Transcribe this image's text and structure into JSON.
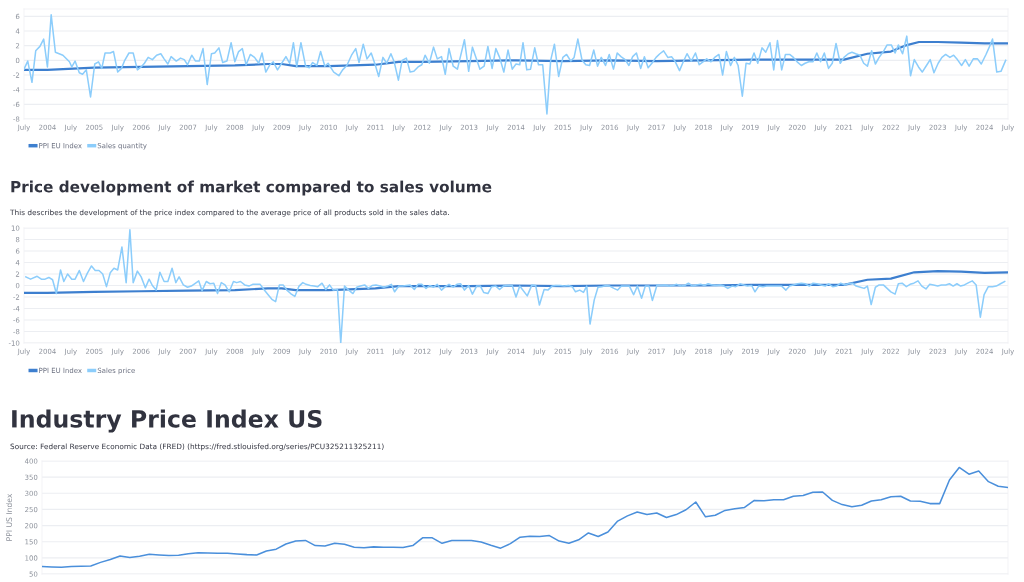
{
  "chart_data": [
    {
      "type": "line",
      "xlim": [
        2003.5,
        2024.5
      ],
      "ylim": [
        -8,
        7
      ],
      "yticks": [
        -8,
        -6,
        -4,
        -2,
        0,
        2,
        4,
        6
      ],
      "grid": "y",
      "legend": "bottom",
      "xticks": [
        {
          "value": 2003.5,
          "label": "July"
        },
        2004,
        {
          "value": 2004.5,
          "label": "July"
        },
        2005,
        {
          "value": 2005.5,
          "label": "July"
        },
        2006,
        {
          "value": 2006.5,
          "label": "July"
        },
        2007,
        {
          "value": 2007.5,
          "label": "July"
        },
        2008,
        {
          "value": 2008.5,
          "label": "July"
        },
        2009,
        {
          "value": 2009.5,
          "label": "July"
        },
        2010,
        {
          "value": 2010.5,
          "label": "July"
        },
        2011,
        {
          "value": 2011.5,
          "label": "July"
        },
        2012,
        {
          "value": 2012.5,
          "label": "July"
        },
        2013,
        {
          "value": 2013.5,
          "label": "July"
        },
        2014,
        {
          "value": 2014.5,
          "label": "July"
        },
        2015,
        {
          "value": 2015.5,
          "label": "July"
        },
        2016,
        {
          "value": 2016.5,
          "label": "July"
        },
        2017,
        {
          "value": 2017.5,
          "label": "July"
        },
        2018,
        {
          "value": 2018.5,
          "label": "July"
        },
        2019,
        {
          "value": 2019.5,
          "label": "July"
        },
        2020,
        {
          "value": 2020.5,
          "label": "July"
        },
        2021,
        {
          "value": 2021.5,
          "label": "July"
        },
        2022,
        {
          "value": 2022.5,
          "label": "July"
        },
        2023,
        {
          "value": 2023.5,
          "label": "July"
        },
        2024,
        {
          "value": 2024.5,
          "label": "July"
        }
      ],
      "series": [
        {
          "name": "PPI EU Index",
          "color": "#3d7fcf",
          "x": [
            2003.5,
            2004,
            2005,
            2006,
            2007,
            2008,
            2008.7,
            2009,
            2009.3,
            2010,
            2011,
            2011.5,
            2012,
            2013,
            2014,
            2015,
            2016,
            2017,
            2018,
            2019,
            2020,
            2021,
            2021.5,
            2022,
            2022.3,
            2022.6,
            2023,
            2023.5,
            2024,
            2024.5
          ],
          "values": [
            -1.3,
            -1.3,
            -1.0,
            -0.9,
            -0.8,
            -0.7,
            -0.5,
            -0.5,
            -0.8,
            -0.8,
            -0.6,
            -0.2,
            -0.2,
            -0.1,
            0.0,
            -0.1,
            0.0,
            -0.1,
            0.0,
            0.1,
            0.1,
            0.1,
            0.9,
            1.2,
            2.0,
            2.5,
            2.5,
            2.4,
            2.3,
            2.3
          ]
        },
        {
          "name": "Sales quantity",
          "color": "#8ccdfb",
          "x": [
            2003.5,
            2003.58,
            2003.67,
            2003.75,
            2003.84,
            2003.92,
            2004.0,
            2004.08,
            2004.17,
            2004.33,
            2004.47,
            2004.52,
            2004.59,
            2004.68,
            2004.75,
            2004.83,
            2004.92,
            2005.01,
            2005.09,
            2005.16,
            2005.23,
            2005.34,
            2005.41,
            2005.5,
            2005.58,
            2005.65,
            2005.74,
            2005.83,
            2005.92,
            2006.0,
            2006.07,
            2006.15,
            2006.24,
            2006.33,
            2006.42,
            2006.49,
            2006.57,
            2006.64,
            2006.75,
            2006.84,
            2006.92,
            2006.99,
            2007.08,
            2007.16,
            2007.24,
            2007.32,
            2007.41,
            2007.5,
            2007.57,
            2007.66,
            2007.74,
            2007.83,
            2007.92,
            2008.0,
            2008.08,
            2008.16,
            2008.24,
            2008.33,
            2008.42,
            2008.51,
            2008.58,
            2008.66,
            2008.75,
            2008.82,
            2008.91,
            2009.0,
            2009.09,
            2009.17,
            2009.25,
            2009.32,
            2009.41,
            2009.51,
            2009.59,
            2009.66,
            2009.75,
            2009.83,
            2009.92,
            2009.99,
            2010.11,
            2010.22,
            2010.3,
            2010.39,
            2010.49,
            2010.58,
            2010.65,
            2010.74,
            2010.82,
            2010.91,
            2011.0,
            2011.07,
            2011.16,
            2011.24,
            2011.33,
            2011.4,
            2011.49,
            2011.57,
            2011.66,
            2011.74,
            2011.82,
            2011.91,
            2011.99,
            2012.06,
            2012.15,
            2012.24,
            2012.32,
            2012.41,
            2012.49,
            2012.57,
            2012.66,
            2012.75,
            2012.9,
            2012.99,
            2013.07,
            2013.16,
            2013.23,
            2013.32,
            2013.4,
            2013.49,
            2013.57,
            2013.65,
            2013.74,
            2013.83,
            2013.92,
            2014.0,
            2014.08,
            2014.15,
            2014.23,
            2014.31,
            2014.4,
            2014.48,
            2014.57,
            2014.66,
            2014.74,
            2014.82,
            2014.91,
            2015.0,
            2015.08,
            2015.17,
            2015.24,
            2015.32,
            2015.41,
            2015.49,
            2015.57,
            2015.66,
            2015.74,
            2015.82,
            2015.91,
            2015.99,
            2016.08,
            2016.16,
            2016.24,
            2016.33,
            2016.41,
            2016.49,
            2016.57,
            2016.66,
            2016.74,
            2016.82,
            2016.9,
            2016.99,
            2017.07,
            2017.15,
            2017.24,
            2017.32,
            2017.4,
            2017.49,
            2017.57,
            2017.65,
            2017.74,
            2017.83,
            2017.91,
            2017.99,
            2018.07,
            2018.16,
            2018.24,
            2018.33,
            2018.41,
            2018.49,
            2018.58,
            2018.66,
            2018.74,
            2018.83,
            2018.91,
            2018.99,
            2019.08,
            2019.16,
            2019.25,
            2019.33,
            2019.42,
            2019.5,
            2019.58,
            2019.67,
            2019.75,
            2019.84,
            2019.92,
            2020.0,
            2020.09,
            2020.17,
            2020.25,
            2020.34,
            2020.42,
            2020.5,
            2020.58,
            2020.67,
            2020.75,
            2020.83,
            2020.92,
            2021.0,
            2021.09,
            2021.17,
            2021.25,
            2021.34,
            2021.42,
            2021.5,
            2021.59,
            2021.67,
            2021.75,
            2021.84,
            2021.92,
            2022.01,
            2022.09,
            2022.16,
            2022.25,
            2022.34,
            2022.42,
            2022.5,
            2022.59,
            2022.67,
            2022.76,
            2022.84,
            2022.92,
            2023.01,
            2023.09,
            2023.17,
            2023.26,
            2023.34,
            2023.42,
            2023.51,
            2023.59,
            2023.67,
            2023.76,
            2023.85,
            2023.93,
            2024.03,
            2024.1,
            2024.17,
            2024.26,
            2024.35,
            2024.45
          ],
          "values": [
            -1.2,
            -0.1,
            -3.0,
            1.3,
            1.9,
            2.9,
            -0.9,
            6.2,
            1.1,
            0.7,
            -0.2,
            -0.9,
            -0.1,
            -1.7,
            -1.9,
            -1.3,
            -5.0,
            -0.5,
            -0.2,
            -1.1,
            1.0,
            1.0,
            1.2,
            -1.6,
            -1.1,
            0.0,
            1.0,
            1.0,
            -1.3,
            -0.9,
            -0.4,
            0.4,
            0.1,
            0.7,
            0.9,
            0.2,
            -0.5,
            0.5,
            -0.1,
            0.3,
            0.1,
            -0.6,
            0.7,
            -0.1,
            -0.1,
            1.6,
            -3.3,
            0.9,
            1.0,
            1.7,
            -0.3,
            -0.1,
            2.4,
            -0.2,
            1.2,
            1.6,
            -0.6,
            0.8,
            0.4,
            -0.4,
            1.0,
            -1.6,
            -0.6,
            -0.2,
            -1.3,
            -0.4,
            0.5,
            -0.4,
            2.4,
            -0.9,
            2.4,
            -0.8,
            -1.0,
            -0.3,
            -0.7,
            1.2,
            -0.8,
            -0.4,
            -1.6,
            -2.1,
            -1.3,
            -0.7,
            0.7,
            1.6,
            -0.3,
            2.2,
            0.2,
            1.0,
            -0.7,
            -2.2,
            0.4,
            -0.4,
            0.9,
            -0.2,
            -2.7,
            0.0,
            0.3,
            -1.6,
            -1.5,
            -0.9,
            -0.6,
            0.7,
            -0.4,
            1.8,
            0.2,
            0.5,
            -1.9,
            1.6,
            -0.8,
            -1.2,
            2.8,
            -1.5,
            1.8,
            0.1,
            -1.2,
            -0.8,
            1.9,
            -1.1,
            1.6,
            0.4,
            -1.6,
            1.4,
            -1.2,
            -0.5,
            -0.6,
            2.4,
            -1.3,
            -1.2,
            1.7,
            -0.6,
            -0.6,
            -7.3,
            0.0,
            2.2,
            -2.2,
            0.4,
            0.8,
            -0.1,
            0.4,
            2.9,
            0.0,
            -0.6,
            -0.7,
            1.4,
            -0.8,
            0.4,
            -0.7,
            0.8,
            -1.2,
            1.0,
            0.5,
            0.1,
            -0.7,
            0.5,
            1.0,
            -1.1,
            0.5,
            -1.0,
            -0.4,
            0.4,
            0.9,
            1.3,
            0.4,
            0.5,
            -0.2,
            -1.4,
            -0.2,
            0.9,
            -0.1,
            1.0,
            -0.6,
            -0.2,
            0.2,
            -0.2,
            0.4,
            0.8,
            -2.0,
            1.2,
            -0.7,
            0.4,
            -0.7,
            -4.9,
            -0.4,
            -0.5,
            1.0,
            -0.4,
            1.7,
            1.1,
            2.4,
            -1.3,
            2.7,
            -1.3,
            0.8,
            0.8,
            0.4,
            -0.2,
            -0.7,
            -0.4,
            -0.2,
            -0.2,
            1.0,
            -0.2,
            1.0,
            -1.1,
            -0.4,
            2.3,
            -0.4,
            0.4,
            0.9,
            1.1,
            0.9,
            0.7,
            -0.4,
            -0.8,
            1.3,
            -0.5,
            0.4,
            1.2,
            2.1,
            2.1,
            1.0,
            2.1,
            0.9,
            3.3,
            -2.1,
            0.1,
            -0.9,
            -1.6,
            -0.7,
            0.1,
            -1.7,
            -0.4,
            0.4,
            0.8,
            0.4,
            0.7,
            0.1,
            -0.7,
            0.1,
            -0.8,
            0.2,
            0.2,
            -0.5,
            0.8,
            1.8,
            2.9,
            -1.6,
            -1.5,
            0.0
          ]
        }
      ]
    },
    {
      "type": "line",
      "title": "Price development of market compared to sales volume",
      "subtitle": "This describes the development of the price index compared to the average price of all products sold in the sales data.",
      "xlim": [
        2003.5,
        2024.5
      ],
      "ylim": [
        -10,
        10
      ],
      "yticks": [
        -10,
        -8,
        -6,
        -4,
        -2,
        0,
        2,
        4,
        6,
        8,
        10
      ],
      "grid": "y",
      "legend": "bottom",
      "xticks": [
        {
          "value": 2003.5,
          "label": "July"
        },
        2004,
        {
          "value": 2004.5,
          "label": "July"
        },
        2005,
        {
          "value": 2005.5,
          "label": "July"
        },
        2006,
        {
          "value": 2006.5,
          "label": "July"
        },
        2007,
        {
          "value": 2007.5,
          "label": "July"
        },
        2008,
        {
          "value": 2008.5,
          "label": "July"
        },
        2009,
        {
          "value": 2009.5,
          "label": "July"
        },
        2010,
        {
          "value": 2010.5,
          "label": "July"
        },
        2011,
        {
          "value": 2011.5,
          "label": "July"
        },
        2012,
        {
          "value": 2012.5,
          "label": "July"
        },
        2013,
        {
          "value": 2013.5,
          "label": "July"
        },
        2014,
        {
          "value": 2014.5,
          "label": "July"
        },
        2015,
        {
          "value": 2015.5,
          "label": "July"
        },
        2016,
        {
          "value": 2016.5,
          "label": "July"
        },
        2017,
        {
          "value": 2017.5,
          "label": "July"
        },
        2018,
        {
          "value": 2018.5,
          "label": "July"
        },
        2019,
        {
          "value": 2019.5,
          "label": "July"
        },
        2020,
        {
          "value": 2020.5,
          "label": "July"
        },
        2021,
        {
          "value": 2021.5,
          "label": "July"
        },
        2022,
        {
          "value": 2022.5,
          "label": "July"
        },
        2023,
        {
          "value": 2023.5,
          "label": "July"
        },
        2024,
        {
          "value": 2024.5,
          "label": "July"
        }
      ],
      "series": [
        {
          "name": "PPI EU Index",
          "color": "#3d7fcf",
          "x": [
            2003.5,
            2004,
            2005,
            2006,
            2007,
            2008,
            2008.7,
            2009,
            2009.3,
            2010,
            2010.3,
            2011,
            2011.5,
            2012,
            2013,
            2014,
            2015,
            2016,
            2017,
            2018,
            2019,
            2020,
            2021,
            2021.5,
            2022,
            2022.5,
            2023,
            2023.5,
            2024,
            2024.5
          ],
          "values": [
            -1.3,
            -1.3,
            -1.1,
            -1.0,
            -0.9,
            -0.8,
            -0.5,
            -0.5,
            -0.8,
            -0.8,
            -0.7,
            -0.5,
            -0.1,
            -0.1,
            -0.1,
            0.0,
            -0.1,
            0.0,
            0.0,
            0.0,
            0.1,
            0.1,
            0.1,
            1.0,
            1.2,
            2.3,
            2.5,
            2.4,
            2.2,
            2.3
          ]
        },
        {
          "name": "Sales price",
          "color": "#8ccdfb",
          "x": [
            2003.54,
            2003.64,
            2003.78,
            2003.87,
            2003.95,
            2004.03,
            2004.11,
            2004.19,
            2004.28,
            2004.35,
            2004.43,
            2004.52,
            2004.59,
            2004.68,
            2004.77,
            2004.85,
            2004.94,
            2005.02,
            2005.1,
            2005.18,
            2005.26,
            2005.34,
            2005.42,
            2005.5,
            2005.59,
            2005.68,
            2005.76,
            2005.83,
            2005.92,
            2006.0,
            2006.09,
            2006.17,
            2006.24,
            2006.32,
            2006.4,
            2006.49,
            2006.57,
            2006.66,
            2006.74,
            2006.81,
            2006.9,
            2006.99,
            2007.07,
            2007.14,
            2007.23,
            2007.3,
            2007.39,
            2007.47,
            2007.55,
            2007.63,
            2007.71,
            2007.79,
            2007.88,
            2007.97,
            2008.04,
            2008.12,
            2008.21,
            2008.3,
            2008.38,
            2008.46,
            2008.54,
            2008.62,
            2008.71,
            2008.79,
            2008.87,
            2008.95,
            2009.03,
            2009.11,
            2009.19,
            2009.28,
            2009.37,
            2009.45,
            2009.52,
            2009.61,
            2009.69,
            2009.77,
            2009.86,
            2009.94,
            2010.02,
            2010.1,
            2010.19,
            2010.26,
            2010.34,
            2010.43,
            2010.52,
            2010.6,
            2010.68,
            2010.77,
            2010.85,
            2010.93,
            2011.01,
            2011.1,
            2011.18,
            2011.26,
            2011.34,
            2011.41,
            2011.5,
            2011.58,
            2011.66,
            2011.74,
            2011.83,
            2011.91,
            2011.99,
            2012.08,
            2012.16,
            2012.24,
            2012.32,
            2012.41,
            2012.49,
            2012.57,
            2012.66,
            2012.74,
            2012.82,
            2012.9,
            2012.99,
            2013.07,
            2013.16,
            2013.24,
            2013.31,
            2013.4,
            2013.48,
            2013.57,
            2013.65,
            2013.73,
            2013.82,
            2013.92,
            2014.0,
            2014.08,
            2014.24,
            2014.34,
            2014.42,
            2014.5,
            2014.6,
            2014.68,
            2014.77,
            2014.85,
            2014.95,
            2015.03,
            2015.12,
            2015.2,
            2015.27,
            2015.36,
            2015.44,
            2015.51,
            2015.58,
            2015.67,
            2015.75,
            2015.83,
            2015.92,
            2016.0,
            2016.09,
            2016.17,
            2016.25,
            2016.34,
            2016.42,
            2016.51,
            2016.59,
            2016.68,
            2016.76,
            2016.84,
            2016.91,
            2017.01,
            2017.1,
            2017.18,
            2017.26,
            2017.35,
            2017.43,
            2017.52,
            2017.6,
            2017.68,
            2017.77,
            2017.85,
            2017.94,
            2018.02,
            2018.1,
            2018.19,
            2018.27,
            2018.36,
            2018.44,
            2018.52,
            2018.61,
            2018.69,
            2018.78,
            2018.86,
            2018.94,
            2019.03,
            2019.1,
            2019.18,
            2019.27,
            2019.35,
            2019.43,
            2019.52,
            2019.6,
            2019.67,
            2019.76,
            2019.84,
            2019.92,
            2020.01,
            2020.09,
            2020.17,
            2020.26,
            2020.34,
            2020.42,
            2020.51,
            2020.6,
            2020.67,
            2020.76,
            2020.84,
            2020.93,
            2021.01,
            2021.09,
            2021.18,
            2021.26,
            2021.35,
            2021.43,
            2021.5,
            2021.58,
            2021.67,
            2021.75,
            2021.84,
            2021.92,
            2022.0,
            2022.09,
            2022.16,
            2022.24,
            2022.33,
            2022.41,
            2022.49,
            2022.58,
            2022.66,
            2022.75,
            2022.83,
            2022.91,
            2023.0,
            2023.08,
            2023.17,
            2023.25,
            2023.33,
            2023.41,
            2023.49,
            2023.57,
            2023.66,
            2023.74,
            2023.82,
            2023.91,
            2023.99,
            2024.08,
            2024.17,
            2024.25,
            2024.34,
            2024.43
          ],
          "values": [
            1.5,
            1.1,
            1.6,
            1.1,
            1.1,
            1.4,
            1.0,
            -1.4,
            2.7,
            0.7,
            2.0,
            1.1,
            1.1,
            2.6,
            0.7,
            2.1,
            3.4,
            2.6,
            2.6,
            2.0,
            -0.2,
            2.2,
            3.0,
            2.7,
            6.7,
            0.5,
            9.7,
            0.5,
            2.5,
            1.5,
            -0.4,
            1.1,
            0.0,
            -0.8,
            2.3,
            0.7,
            0.7,
            3.0,
            0.5,
            1.5,
            0.1,
            -0.3,
            -0.1,
            0.3,
            0.8,
            -0.9,
            0.7,
            0.3,
            0.4,
            -1.4,
            0.5,
            0.1,
            -1.1,
            0.7,
            0.5,
            0.7,
            0.1,
            -0.1,
            0.2,
            0.2,
            0.2,
            -0.7,
            -1.6,
            -2.4,
            -2.8,
            0.1,
            0.1,
            -0.8,
            -1.4,
            -1.9,
            -0.1,
            0.5,
            0.2,
            0.0,
            -0.1,
            -0.2,
            0.4,
            -0.7,
            0.1,
            -0.8,
            -0.7,
            -10.0,
            -0.1,
            -0.8,
            -1.4,
            -0.3,
            -0.1,
            0.1,
            -0.5,
            0.0,
            0.1,
            -0.1,
            -0.3,
            -0.1,
            0.2,
            -1.1,
            -0.1,
            -0.1,
            0.0,
            0.1,
            -0.7,
            0.2,
            0.2,
            -0.5,
            0.0,
            -0.3,
            0.2,
            -0.8,
            -0.2,
            0.2,
            -0.3,
            0.2,
            0.3,
            -0.8,
            0.0,
            -1.5,
            -0.1,
            -0.1,
            -1.2,
            -1.4,
            -0.2,
            -0.1,
            -0.7,
            -0.1,
            0.0,
            0.0,
            -2.0,
            -0.1,
            -1.8,
            0.1,
            0.0,
            -3.4,
            -0.7,
            -0.8,
            -0.1,
            0.0,
            0.0,
            -0.1,
            0.0,
            -0.2,
            -1.1,
            -0.8,
            -1.2,
            -0.1,
            -6.7,
            -2.5,
            -0.3,
            -0.2,
            0.0,
            -0.1,
            -0.5,
            -0.8,
            -0.1,
            -0.1,
            -0.1,
            -1.6,
            -0.1,
            -2.2,
            -0.1,
            -0.1,
            -2.6,
            0.1,
            0.0,
            0.1,
            -0.1,
            0.0,
            0.2,
            -0.1,
            0.0,
            0.4,
            -0.1,
            0.1,
            0.2,
            0.0,
            0.3,
            0.1,
            0.0,
            0.1,
            -0.1,
            -0.5,
            -0.1,
            -0.2,
            0.3,
            0.1,
            -0.1,
            0.0,
            -1.1,
            -0.1,
            -0.2,
            -0.1,
            -0.1,
            -0.1,
            -0.1,
            -0.1,
            -0.8,
            -0.1,
            0.1,
            0.3,
            0.4,
            0.3,
            -0.1,
            0.4,
            0.3,
            0.1,
            -0.1,
            0.3,
            -0.2,
            -0.1,
            0.4,
            0.1,
            0.3,
            0.4,
            -0.1,
            -0.3,
            -0.5,
            -0.1,
            -3.3,
            -0.3,
            0.1,
            0.1,
            -0.5,
            -1.1,
            -1.5,
            0.3,
            0.4,
            -0.2,
            0.2,
            0.4,
            0.8,
            -0.1,
            -0.6,
            0.2,
            0.1,
            -0.1,
            0.1,
            0.1,
            0.3,
            -0.1,
            0.3,
            -0.1,
            0.1,
            0.5,
            0.8,
            0.1,
            -5.5,
            -1.6,
            -0.2,
            -0.2,
            -0.1,
            0.3,
            0.7
          ]
        }
      ]
    },
    {
      "type": "line",
      "title": "Industry Price Index US",
      "annotations": [
        "Source: Federal Reserve Economic Data (FRED) (https://fred.stlouisfed.org/series/PCU325211325211)"
      ],
      "ylabel": "PPI US Index",
      "ylim": [
        50,
        400
      ],
      "yticks": [
        50,
        100,
        150,
        200,
        250,
        300,
        350,
        400
      ],
      "grid": "y",
      "tick_labels": "y",
      "categories": [
        null,
        null,
        null,
        null,
        null,
        null,
        null,
        null,
        null,
        null,
        null,
        null,
        null,
        null,
        null,
        null,
        null,
        null,
        null,
        null,
        null,
        null,
        null,
        null,
        null,
        null,
        null,
        null,
        null,
        null,
        null,
        null,
        null,
        null,
        null,
        null,
        null,
        null,
        null,
        null,
        null,
        null,
        null,
        null,
        null,
        null,
        null,
        null,
        null,
        null,
        null,
        null,
        null,
        null,
        null,
        null,
        null,
        null,
        null,
        null,
        null,
        null,
        null,
        null,
        null,
        null,
        null,
        null,
        null,
        null,
        null,
        null,
        null,
        null,
        null,
        null,
        null,
        null,
        null,
        null,
        null,
        null,
        null,
        null,
        null,
        null,
        null,
        null,
        null,
        null,
        null,
        null,
        null,
        null,
        null,
        null,
        null,
        null,
        null,
        null
      ],
      "series": [
        {
          "color": "#4a8fdb",
          "values": [
            73,
            72,
            71,
            73,
            74,
            75,
            86,
            95,
            106,
            101,
            105,
            111,
            109,
            107,
            108,
            113,
            116,
            115,
            114,
            114,
            112,
            110,
            109,
            121,
            127,
            143,
            152,
            154,
            138,
            137,
            145,
            142,
            133,
            131,
            134,
            133,
            133,
            132,
            138,
            162,
            162,
            145,
            154,
            154,
            154,
            149,
            139,
            130,
            144,
            164,
            167,
            166,
            169,
            152,
            145,
            156,
            177,
            166,
            180,
            214,
            230,
            242,
            234,
            239,
            225,
            234,
            249,
            273,
            227,
            232,
            247,
            252,
            256,
            278,
            277,
            280,
            280,
            291,
            293,
            303,
            304,
            278,
            265,
            258,
            263,
            276,
            280,
            289,
            291,
            276,
            275,
            268,
            268,
            341,
            380,
            359,
            369,
            336,
            322,
            318
          ]
        }
      ]
    }
  ]
}
